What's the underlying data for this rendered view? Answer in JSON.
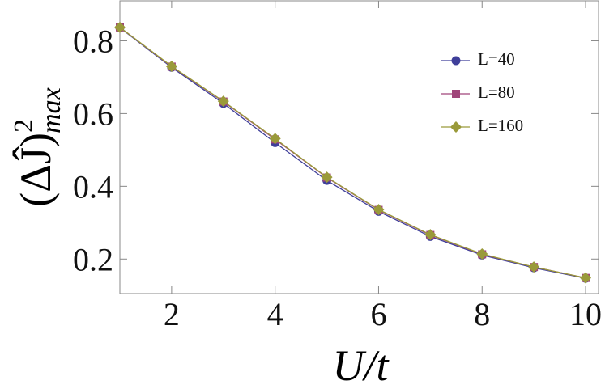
{
  "chart_data": {
    "type": "line",
    "xlabel": "U/t",
    "ylabel": {
      "base": "(ΔĴ)",
      "sup": "2",
      "sub": "max"
    },
    "x": [
      1,
      2,
      3,
      4,
      5,
      6,
      7,
      8,
      9,
      10
    ],
    "series": [
      {
        "name": "L=40",
        "color": "#3f3f9a",
        "marker": "circle",
        "values": [
          0.836,
          0.727,
          0.628,
          0.52,
          0.416,
          0.331,
          0.262,
          0.211,
          0.176,
          0.147
        ]
      },
      {
        "name": "L=80",
        "color": "#a0457a",
        "marker": "square",
        "values": [
          0.837,
          0.729,
          0.633,
          0.529,
          0.424,
          0.335,
          0.266,
          0.213,
          0.178,
          0.148
        ]
      },
      {
        "name": "L=160",
        "color": "#9a9a3a",
        "marker": "diamond",
        "values": [
          0.837,
          0.73,
          0.634,
          0.531,
          0.425,
          0.336,
          0.267,
          0.214,
          0.178,
          0.148
        ]
      }
    ],
    "xlim": [
      1,
      10.25
    ],
    "ylim": [
      0.105,
      0.91
    ],
    "xticks": [
      2,
      4,
      6,
      8,
      10
    ],
    "yticks": [
      0.2,
      0.4,
      0.6,
      0.8
    ],
    "legend": "upper-right"
  }
}
